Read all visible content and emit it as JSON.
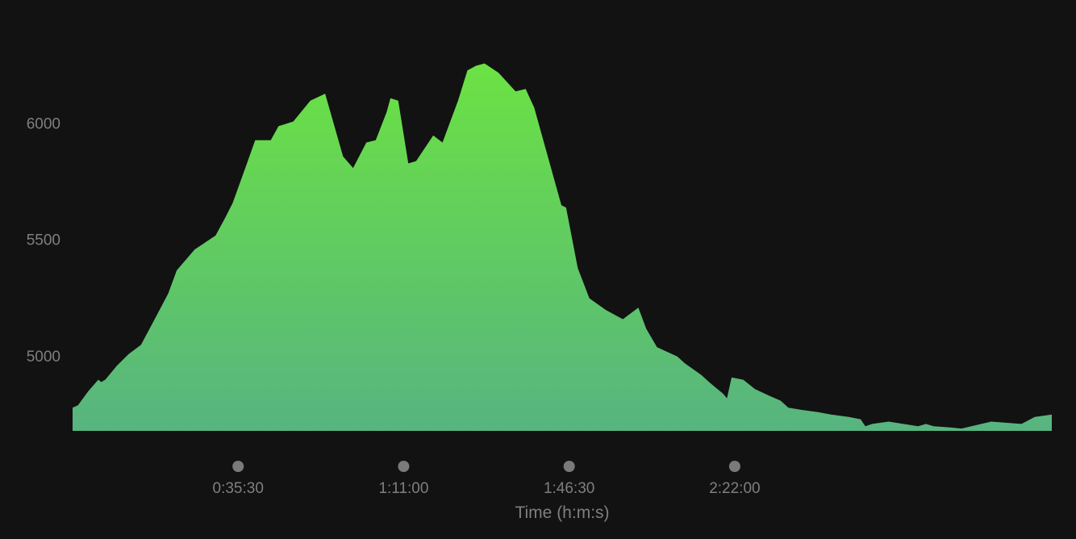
{
  "chart_data": {
    "type": "area",
    "title": "",
    "xlabel": "Time (h:m:s)",
    "ylabel": "",
    "grid": false,
    "legend": "none",
    "xlim": [
      0,
      12600
    ],
    "ylim": [
      4680,
      6380
    ],
    "baseline": 4680,
    "y_ticks": [
      {
        "value": 5000,
        "label": "5000"
      },
      {
        "value": 5500,
        "label": "5500"
      },
      {
        "value": 6000,
        "label": "6000"
      }
    ],
    "x_ticks": [
      {
        "value": 2130,
        "label": "0:35:30"
      },
      {
        "value": 4260,
        "label": "1:11:00"
      },
      {
        "value": 6390,
        "label": "1:46:30"
      },
      {
        "value": 8520,
        "label": "2:22:00"
      }
    ],
    "colors": {
      "background": "#121212",
      "fill_top": "#6be243",
      "fill_bottom": "#57b480",
      "text": "#7f7f7f",
      "tick_marker": "#7a7a7a"
    },
    "series": [
      {
        "x": [
          0,
          70,
          200,
          330,
          370,
          420,
          570,
          720,
          880,
          1040,
          1230,
          1340,
          1570,
          1840,
          1970,
          2060,
          2200,
          2350,
          2550,
          2650,
          2840,
          3060,
          3250,
          3480,
          3610,
          3780,
          3900,
          4040,
          4090,
          4190,
          4320,
          4420,
          4640,
          4760,
          4960,
          5080,
          5190,
          5300,
          5480,
          5700,
          5830,
          5940,
          6290,
          6350,
          6500,
          6650,
          6860,
          7080,
          7280,
          7380,
          7520,
          7780,
          7880,
          8090,
          8190,
          8370,
          8420,
          8480,
          8630,
          8780,
          8970,
          9110,
          9210,
          9390,
          9600,
          9760,
          9990,
          10140,
          10200,
          10290,
          10500,
          10880,
          10980,
          11080,
          11290,
          11440,
          11820,
          12210,
          12380,
          12600
        ],
        "y": [
          4780,
          4790,
          4850,
          4900,
          4890,
          4900,
          4960,
          5010,
          5050,
          5150,
          5270,
          5370,
          5460,
          5520,
          5600,
          5660,
          5790,
          5930,
          5930,
          5990,
          6010,
          6100,
          6130,
          5860,
          5810,
          5920,
          5930,
          6050,
          6110,
          6100,
          5830,
          5840,
          5950,
          5920,
          6100,
          6230,
          6250,
          6260,
          6220,
          6140,
          6150,
          6070,
          5650,
          5640,
          5380,
          5250,
          5200,
          5160,
          5210,
          5120,
          5040,
          5000,
          4970,
          4920,
          4890,
          4840,
          4820,
          4910,
          4900,
          4860,
          4830,
          4810,
          4780,
          4770,
          4760,
          4750,
          4740,
          4730,
          4700,
          4710,
          4720,
          4700,
          4710,
          4700,
          4695,
          4690,
          4720,
          4710,
          4740,
          4750
        ]
      }
    ]
  }
}
